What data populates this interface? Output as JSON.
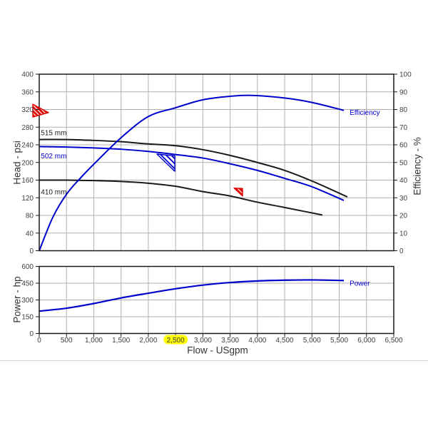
{
  "colors": {
    "curve_blue": "#0000cc",
    "curve_black": "#1a1a1a",
    "marker_red": "#e00000",
    "grid": "#b0b0b0",
    "axis": "#1a1a1a",
    "tick_text": "#404040",
    "highlight_yellow": "#ffff00"
  },
  "flow_axis": {
    "title": "Flow - USgpm",
    "max": 6500,
    "step": 500,
    "tick_labels": [
      "0",
      "500",
      "1,000",
      "1,500",
      "2,000",
      "2,500",
      "3,000",
      "3,500",
      "4,000",
      "4,500",
      "5,000",
      "5,500",
      "6,000",
      "6,500"
    ],
    "highlighted_label": "2,500"
  },
  "chart_data": [
    {
      "type": "line",
      "ylabel_left": "Head - psi",
      "ylabel_right": "Efficiency - %",
      "ylim_left": [
        0,
        400
      ],
      "ylim_right": [
        0,
        100
      ],
      "left_tick_labels": [
        "0",
        "40",
        "80",
        "120",
        "160",
        "200",
        "240",
        "280",
        "320",
        "360",
        "400"
      ],
      "right_tick_labels": [
        "0",
        "10",
        "20",
        "30",
        "40",
        "50",
        "60",
        "70",
        "80",
        "90",
        "100"
      ],
      "grid": true,
      "series": [
        {
          "name": "515 mm",
          "axis": "left",
          "color": "#1a1a1a",
          "points": [
            [
              0,
              252
            ],
            [
              500,
              252
            ],
            [
              1000,
              250
            ],
            [
              1500,
              247
            ],
            [
              2000,
              242
            ],
            [
              2500,
              238
            ],
            [
              3000,
              229
            ],
            [
              3500,
              216
            ],
            [
              4000,
              200
            ],
            [
              4500,
              182
            ],
            [
              5000,
              158
            ],
            [
              5650,
              122
            ]
          ]
        },
        {
          "name": "502 mm",
          "axis": "left",
          "color": "#0000cc",
          "points": [
            [
              0,
              236
            ],
            [
              500,
              235
            ],
            [
              1000,
              233
            ],
            [
              1500,
              230
            ],
            [
              2000,
              225
            ],
            [
              2500,
              218
            ],
            [
              3000,
              210
            ],
            [
              3500,
              197
            ],
            [
              4000,
              182
            ],
            [
              4500,
              164
            ],
            [
              5000,
              145
            ],
            [
              5585,
              114
            ]
          ]
        },
        {
          "name": "410 mm",
          "axis": "left",
          "color": "#1a1a1a",
          "points": [
            [
              0,
              160
            ],
            [
              500,
              160
            ],
            [
              1000,
              159
            ],
            [
              1500,
              157
            ],
            [
              2000,
              153
            ],
            [
              2500,
              146
            ],
            [
              3000,
              134
            ],
            [
              3500,
              124
            ],
            [
              4000,
              110
            ],
            [
              4500,
              98
            ],
            [
              5190,
              81
            ]
          ]
        },
        {
          "name": "Efficiency",
          "axis": "right",
          "color": "#0000cc",
          "points": [
            [
              0,
              0
            ],
            [
              250,
              19
            ],
            [
              500,
              32
            ],
            [
              750,
              41
            ],
            [
              1000,
              49
            ],
            [
              1500,
              64
            ],
            [
              2000,
              76
            ],
            [
              2500,
              81
            ],
            [
              3000,
              85.5
            ],
            [
              3500,
              87.5
            ],
            [
              3900,
              88
            ],
            [
              4500,
              86.5
            ],
            [
              5000,
              84
            ],
            [
              5585,
              79.5
            ]
          ]
        }
      ],
      "labels": [
        {
          "text": "515 mm",
          "flow": 30,
          "value": 262,
          "axis": "left",
          "color": "#1a1a1a"
        },
        {
          "text": "502 mm",
          "flow": 30,
          "value": 209,
          "axis": "left",
          "color": "#0000cc"
        },
        {
          "text": "410 mm",
          "flow": 30,
          "value": 128,
          "axis": "left",
          "color": "#1a1a1a"
        },
        {
          "text": "Efficiency",
          "flow": 5690,
          "value": 77,
          "axis": "right",
          "color": "#0000cc"
        }
      ],
      "markers": [
        {
          "name": "red-triangle-marker-left",
          "color": "#e00000",
          "axis": "left",
          "points": [
            [
              -118,
              332
            ],
            [
              170,
              313
            ],
            [
              -118,
              303
            ]
          ]
        },
        {
          "name": "blue-triangle-marker-duty",
          "color": "#0000cc",
          "axis": "left",
          "points": [
            [
              2158,
              219
            ],
            [
              2485,
              215
            ],
            [
              2485,
              180
            ]
          ]
        },
        {
          "name": "red-triangle-marker-right",
          "color": "#e00000",
          "axis": "left",
          "points": [
            [
              3571,
              142
            ],
            [
              3728,
              141
            ],
            [
              3728,
              124
            ]
          ]
        }
      ]
    },
    {
      "type": "line",
      "ylabel_left": "Power - hp",
      "ylim_left": [
        0,
        600
      ],
      "left_tick_labels": [
        "0",
        "150",
        "300",
        "450",
        "600"
      ],
      "grid": true,
      "series": [
        {
          "name": "Power",
          "axis": "left",
          "color": "#0000cc",
          "points": [
            [
              0,
              200
            ],
            [
              500,
              226
            ],
            [
              1000,
              268
            ],
            [
              1500,
              318
            ],
            [
              2000,
              360
            ],
            [
              2500,
              400
            ],
            [
              3000,
              433
            ],
            [
              3500,
              456
            ],
            [
              4000,
              470
            ],
            [
              4500,
              477
            ],
            [
              5000,
              479
            ],
            [
              5585,
              474
            ]
          ]
        }
      ],
      "labels": [
        {
          "text": "Power",
          "flow": 5690,
          "value": 428,
          "axis": "left",
          "color": "#0000cc"
        }
      ],
      "markers": []
    }
  ]
}
